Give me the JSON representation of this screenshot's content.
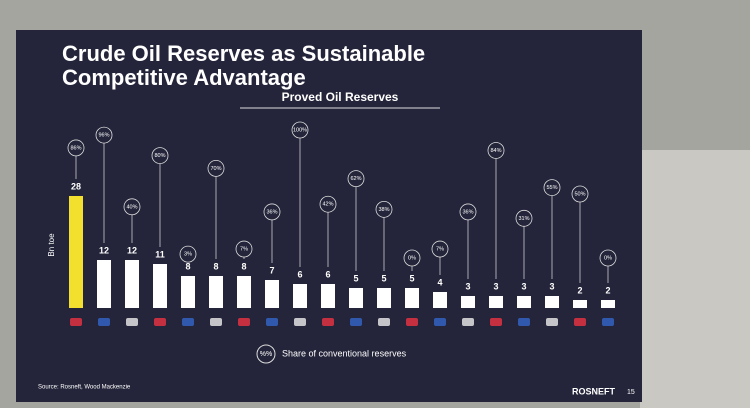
{
  "chart_data": {
    "type": "bar",
    "title": "Crude Oil Reserves as Sustainable Competitive Advantage",
    "subtitle": "Proved Oil Reserves",
    "y_label": "Bn toe",
    "categories": [
      null,
      null,
      null,
      null,
      null,
      null,
      null,
      null,
      null,
      null,
      null,
      null,
      null,
      null,
      null,
      null,
      null,
      null,
      null,
      null
    ],
    "series": [
      {
        "name": "Proved Oil Reserves",
        "colors": [
          "#f2df2e",
          "#ffffff"
        ],
        "values": [
          28,
          12,
          12,
          11,
          8,
          8,
          8,
          7,
          6,
          6,
          5,
          5,
          5,
          4,
          3,
          3,
          3,
          3,
          2,
          2
        ]
      },
      {
        "name": "Share of conventional reserves",
        "legend_symbol": "%%",
        "values": [
          86,
          96,
          40,
          80,
          3,
          70,
          7,
          36,
          100,
          42,
          62,
          38,
          0,
          7,
          36,
          84,
          31,
          55,
          50,
          0
        ],
        "value_labels": [
          "86%",
          "96%",
          "40%",
          "80%",
          "3%",
          "70%",
          "7%",
          "36%",
          "100%",
          "42%",
          "62%",
          "38%",
          "0%",
          "7%",
          "36%",
          "84%",
          "31%",
          "55%",
          "50%",
          "0%"
        ]
      }
    ],
    "source": "Source: Rosneft, Wood Mackenzie",
    "brand": "ROSNEFT",
    "page_number": "15"
  }
}
